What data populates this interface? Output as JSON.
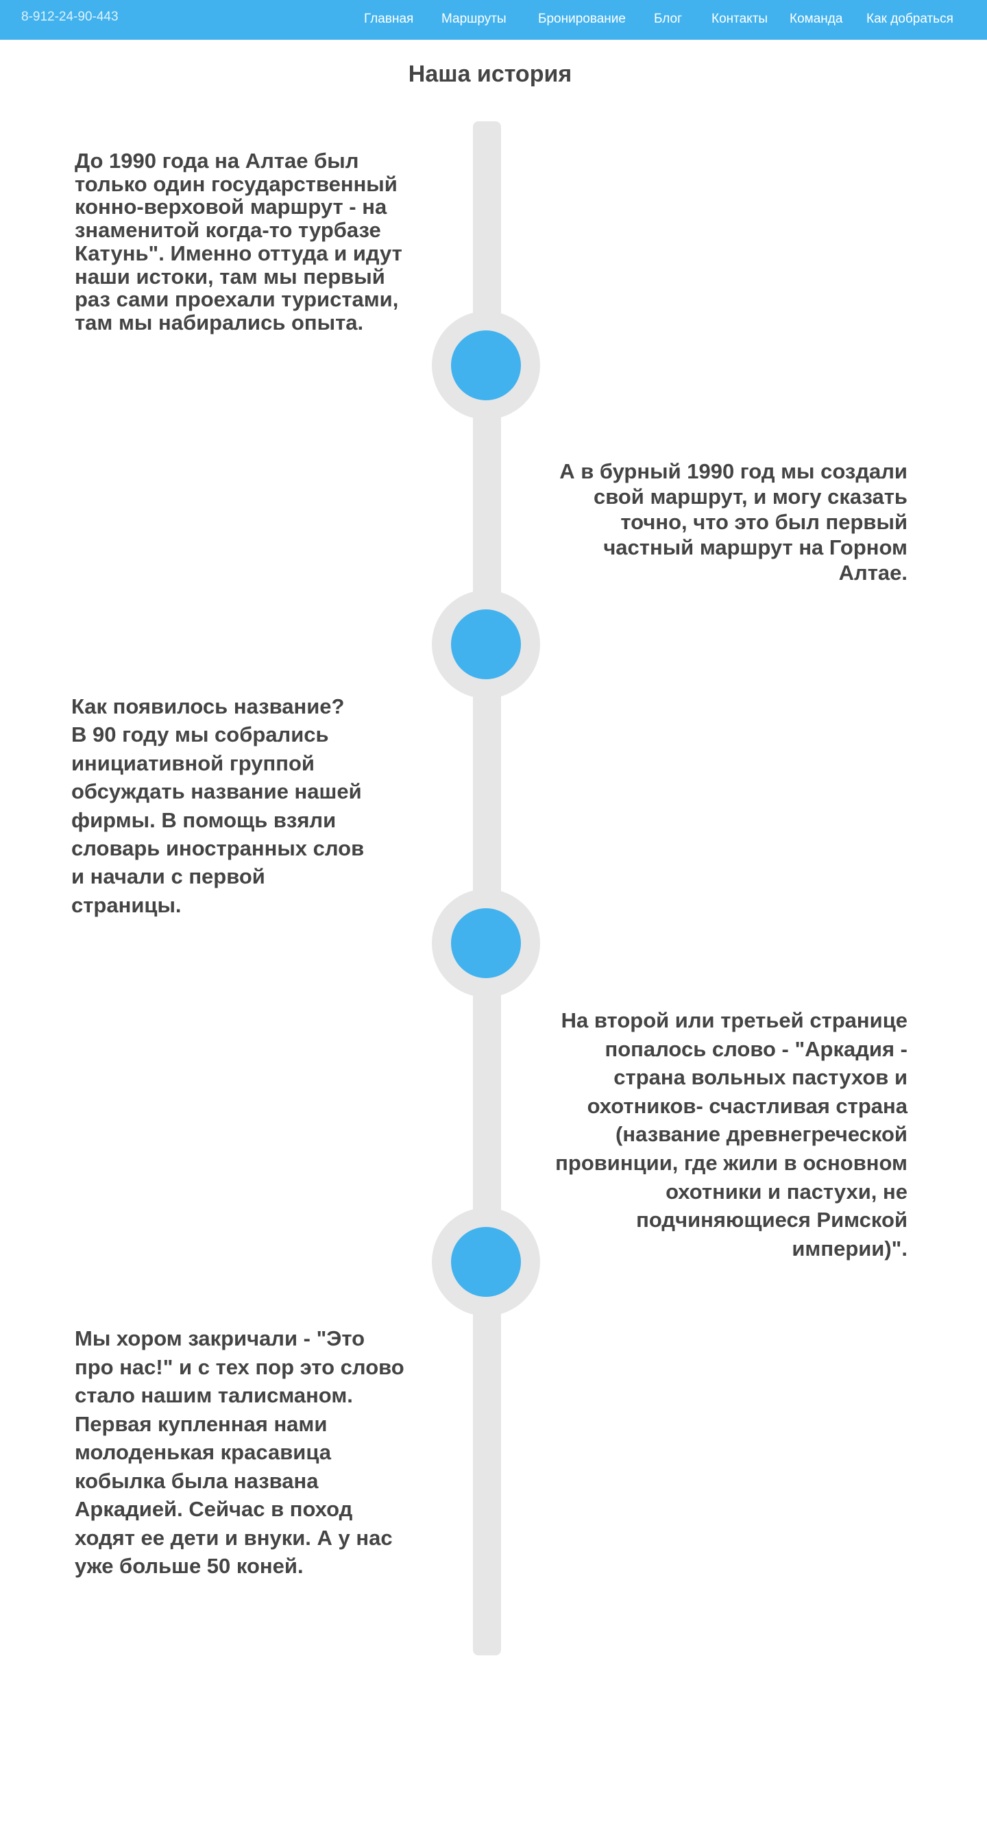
{
  "header": {
    "phone": "8-912-24-90-443",
    "nav": [
      {
        "label": "Главная"
      },
      {
        "label": "Маршруты"
      },
      {
        "label": "Бронирование"
      },
      {
        "label": "Блог"
      },
      {
        "label": "Контакты"
      },
      {
        "label": "Команда"
      },
      {
        "label": "Как добраться"
      }
    ]
  },
  "main": {
    "title": "Наша история",
    "entries": [
      {
        "text": "До 1990 года на Алтае был\nтолько один государственный\nконно-верховой  маршрут - на\nзнаменитой когда-то турбазе\nКатунь\". Именно оттуда и идут\nнаши истоки, там мы первый\nраз сами проехали туристами,\nтам мы набирались опыта."
      },
      {
        "text": "А в бурный 1990 год мы создали\nсвой маршрут, и могу сказать\nточно, что это был первый\nчастный маршрут на Горном\nАлтае."
      },
      {
        "text": "Как появилось название?\nВ 90 году мы собрались\nинициативной группой\nобсуждать название нашей\nфирмы. В помощь взяли\nсловарь иностранных слов\nи начали с первой\nстраницы."
      },
      {
        "text": "На второй или третьей странице\nпопалось слово - \"Аркадия  -\nстрана вольных пастухов и\nохотников- счастливая страна\n(название древнегреческой\nпровинции, где жили в основном\nохотники и пастухи, не\nподчиняющиеся Римской\nимперии)\"."
      },
      {
        "text": "Мы хором закричали - \"Это\nпро нас!\" и с тех пор это слово\nстало нашим талисманом.\nПервая купленная нами\nмолоденькая красавица\nкобылка была названа\nАркадией. Сейчас в поход\nходят ее дети и внуки. А  у нас\nуже больше 50 коней."
      }
    ]
  },
  "colors": {
    "accent": "#41b2ee",
    "timeline": "#e6e6e6",
    "text": "#444444"
  }
}
